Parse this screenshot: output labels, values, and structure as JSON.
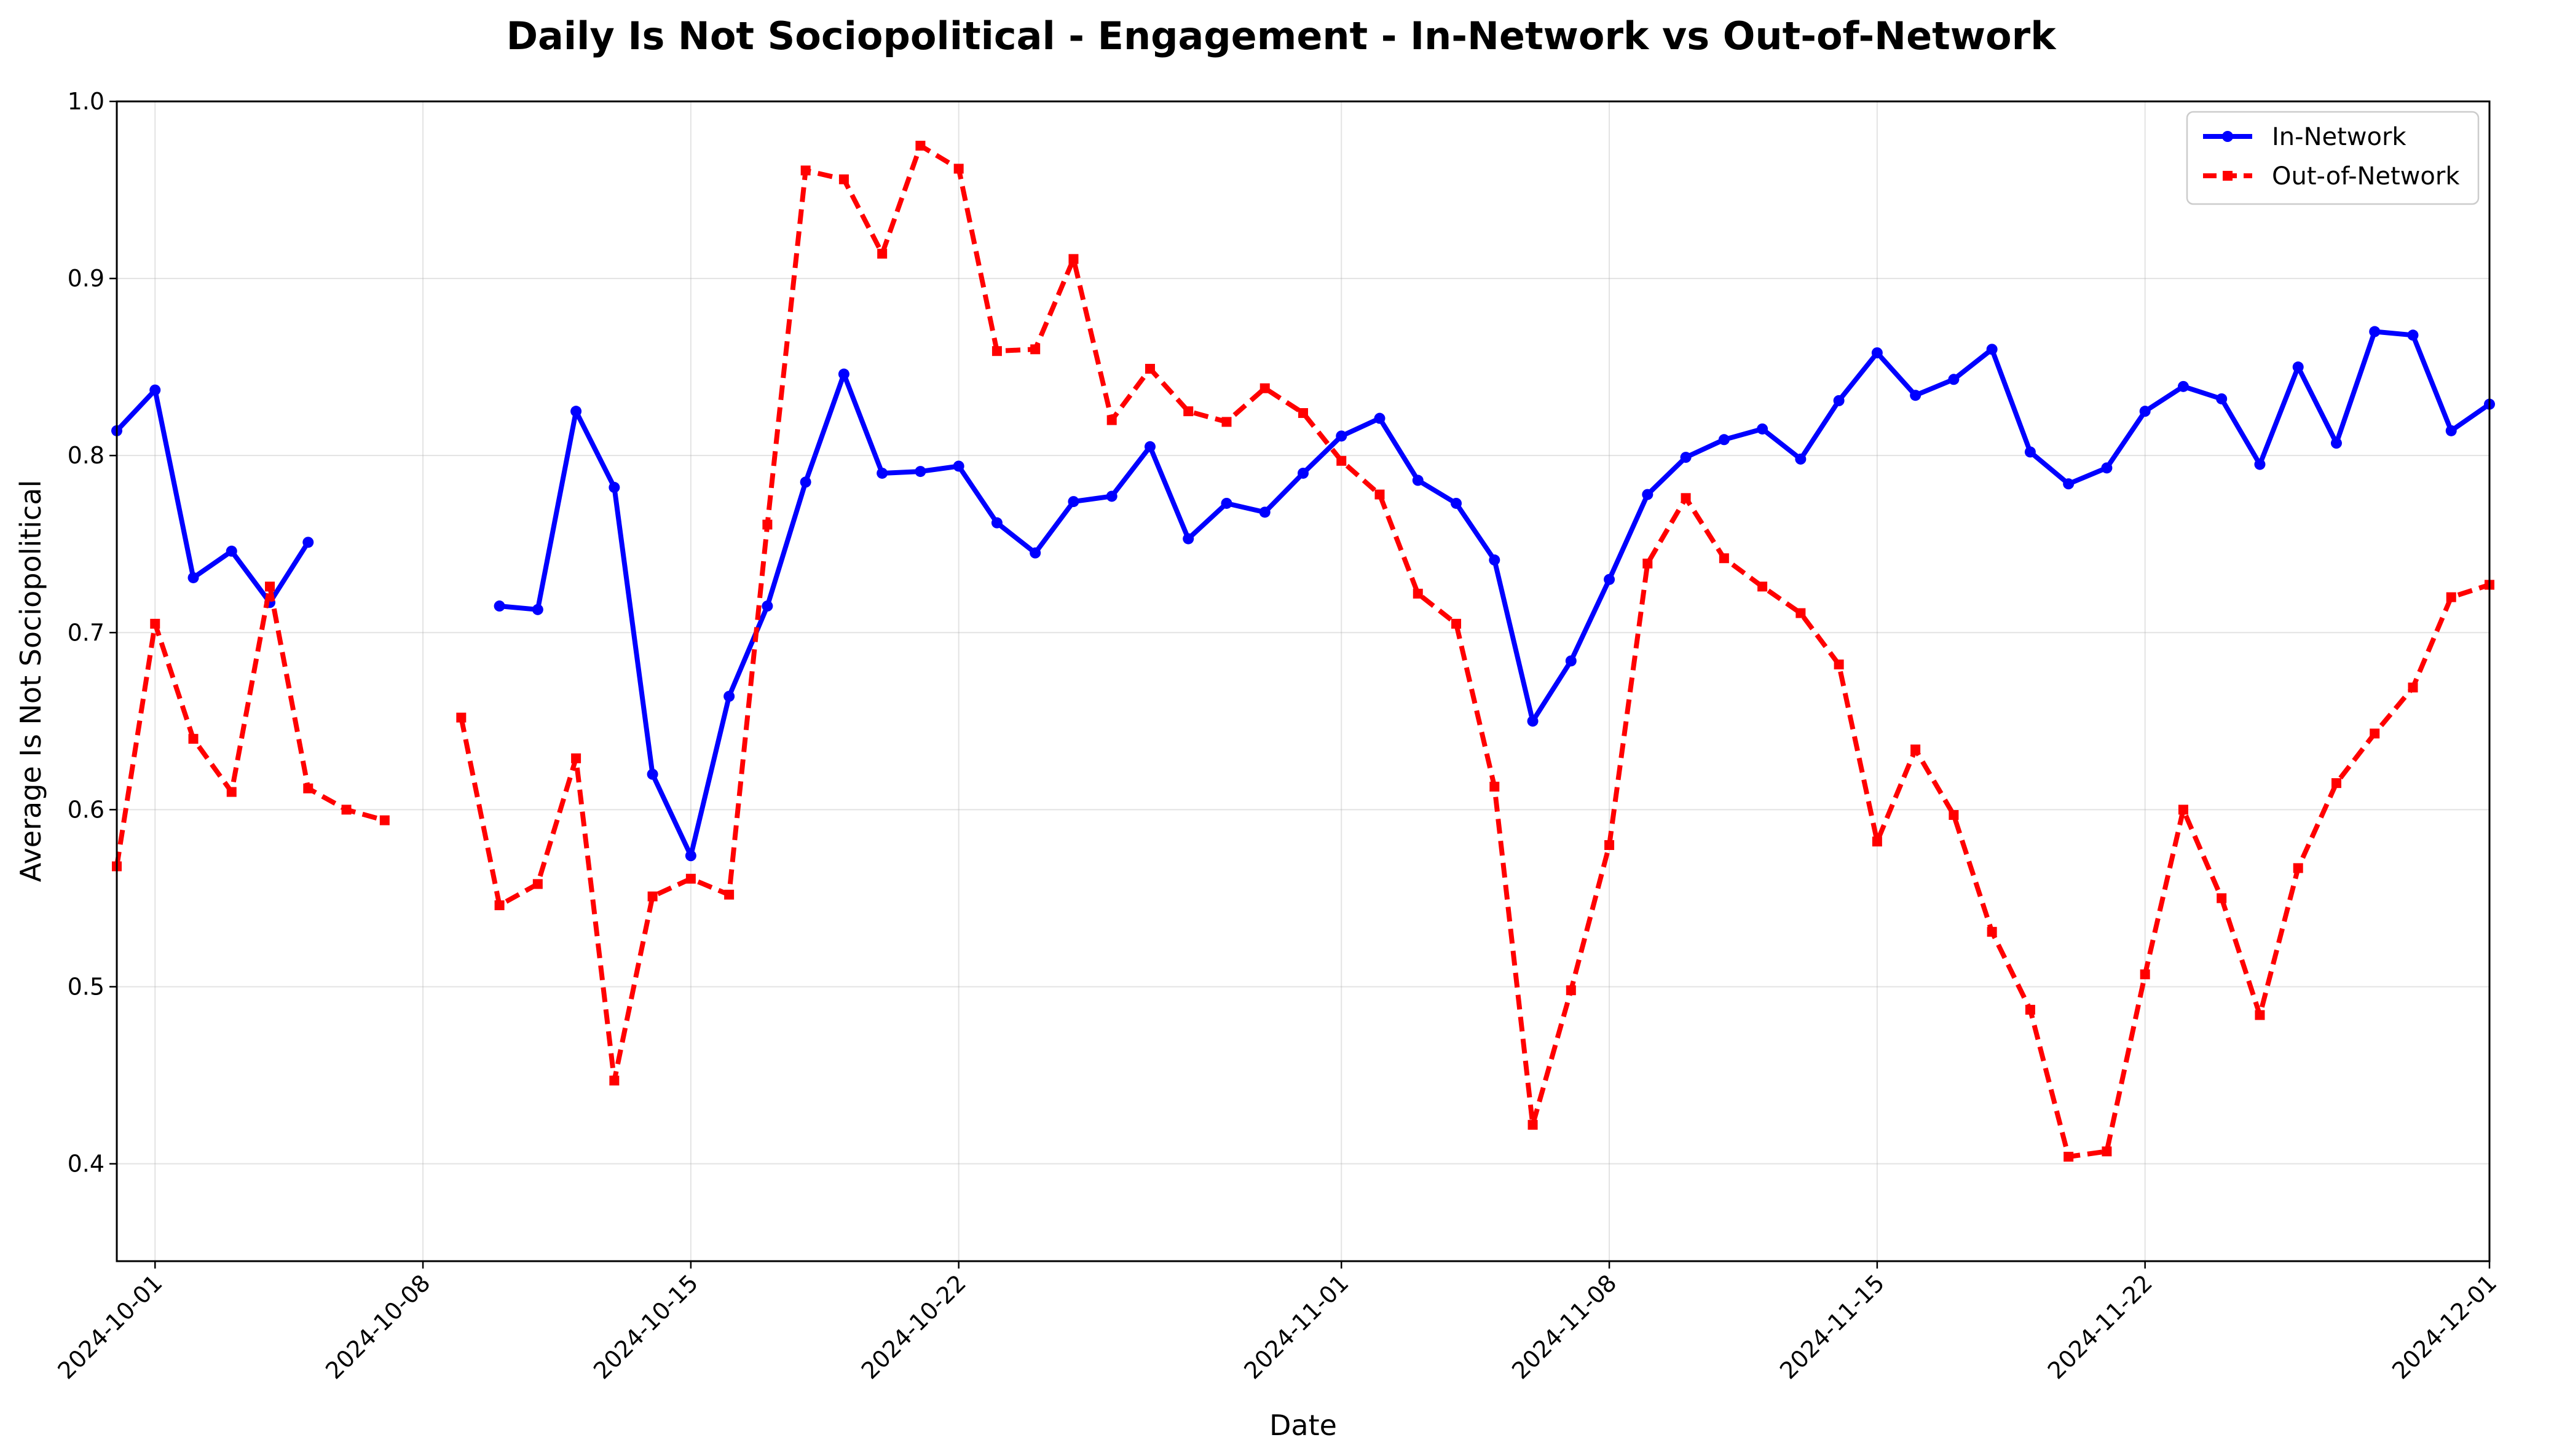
{
  "chart_data": {
    "type": "line",
    "title": "Daily Is Not Sociopolitical - Engagement - In-Network vs Out-of-Network",
    "xlabel": "Date",
    "ylabel": "Average Is Not Sociopolitical",
    "xlim": [
      "2024-09-30",
      "2024-12-01"
    ],
    "ylim": [
      0.345,
      1.0
    ],
    "grid": true,
    "legend_position": "top-right",
    "x_ticks": [
      "2024-10-01",
      "2024-10-08",
      "2024-10-15",
      "2024-10-22",
      "2024-11-01",
      "2024-11-08",
      "2024-11-15",
      "2024-11-22",
      "2024-12-01"
    ],
    "y_ticks": [
      "0.4",
      "0.5",
      "0.6",
      "0.7",
      "0.8",
      "0.9",
      "1.0"
    ],
    "x": [
      "2024-09-30",
      "2024-10-01",
      "2024-10-02",
      "2024-10-03",
      "2024-10-04",
      "2024-10-05",
      "2024-10-06",
      "2024-10-07",
      "2024-10-08",
      "2024-10-09",
      "2024-10-10",
      "2024-10-11",
      "2024-10-12",
      "2024-10-13",
      "2024-10-14",
      "2024-10-15",
      "2024-10-16",
      "2024-10-17",
      "2024-10-18",
      "2024-10-19",
      "2024-10-20",
      "2024-10-21",
      "2024-10-22",
      "2024-10-23",
      "2024-10-24",
      "2024-10-25",
      "2024-10-26",
      "2024-10-27",
      "2024-10-28",
      "2024-10-29",
      "2024-10-30",
      "2024-10-31",
      "2024-11-01",
      "2024-11-02",
      "2024-11-03",
      "2024-11-04",
      "2024-11-05",
      "2024-11-06",
      "2024-11-07",
      "2024-11-08",
      "2024-11-09",
      "2024-11-10",
      "2024-11-11",
      "2024-11-12",
      "2024-11-13",
      "2024-11-14",
      "2024-11-15",
      "2024-11-16",
      "2024-11-17",
      "2024-11-18",
      "2024-11-19",
      "2024-11-20",
      "2024-11-21",
      "2024-11-22",
      "2024-11-23",
      "2024-11-24",
      "2024-11-25",
      "2024-11-26",
      "2024-11-27",
      "2024-11-28",
      "2024-11-29",
      "2024-11-30",
      "2024-12-01"
    ],
    "series": [
      {
        "name": "In-Network",
        "color": "#0000ff",
        "style": "solid",
        "marker": "circle",
        "values": [
          0.814,
          0.837,
          0.731,
          0.746,
          0.717,
          0.751,
          null,
          null,
          null,
          null,
          0.715,
          0.713,
          0.825,
          0.782,
          0.62,
          0.574,
          0.664,
          0.715,
          0.785,
          0.846,
          0.79,
          0.791,
          0.794,
          0.762,
          0.745,
          0.774,
          0.777,
          0.805,
          0.753,
          0.773,
          0.768,
          0.79,
          0.811,
          0.821,
          0.786,
          0.773,
          0.741,
          0.65,
          0.684,
          0.73,
          0.778,
          0.799,
          0.809,
          0.815,
          0.798,
          0.831,
          0.858,
          0.834,
          0.843,
          0.86,
          0.802,
          0.784,
          0.793,
          0.825,
          0.839,
          0.832,
          0.795,
          0.85,
          0.807,
          0.87,
          0.868,
          0.814,
          0.829
        ]
      },
      {
        "name": "Out-of-Network",
        "color": "#ff0000",
        "style": "dashed",
        "marker": "square",
        "values": [
          0.568,
          0.705,
          0.64,
          0.61,
          0.726,
          0.612,
          0.6,
          0.594,
          null,
          0.652,
          0.546,
          0.558,
          0.629,
          0.447,
          0.551,
          0.561,
          0.552,
          0.761,
          0.961,
          0.956,
          0.914,
          0.975,
          0.962,
          0.859,
          0.86,
          0.911,
          0.82,
          0.849,
          0.825,
          0.819,
          0.838,
          0.824,
          0.797,
          0.778,
          0.722,
          0.705,
          0.613,
          0.422,
          0.498,
          0.58,
          0.739,
          0.776,
          0.742,
          0.726,
          0.711,
          0.682,
          0.582,
          0.634,
          0.597,
          0.531,
          0.487,
          0.404,
          0.407,
          0.507,
          0.6,
          0.55,
          0.484,
          0.567,
          0.615,
          0.643,
          0.669,
          0.72,
          0.727
        ]
      }
    ]
  }
}
